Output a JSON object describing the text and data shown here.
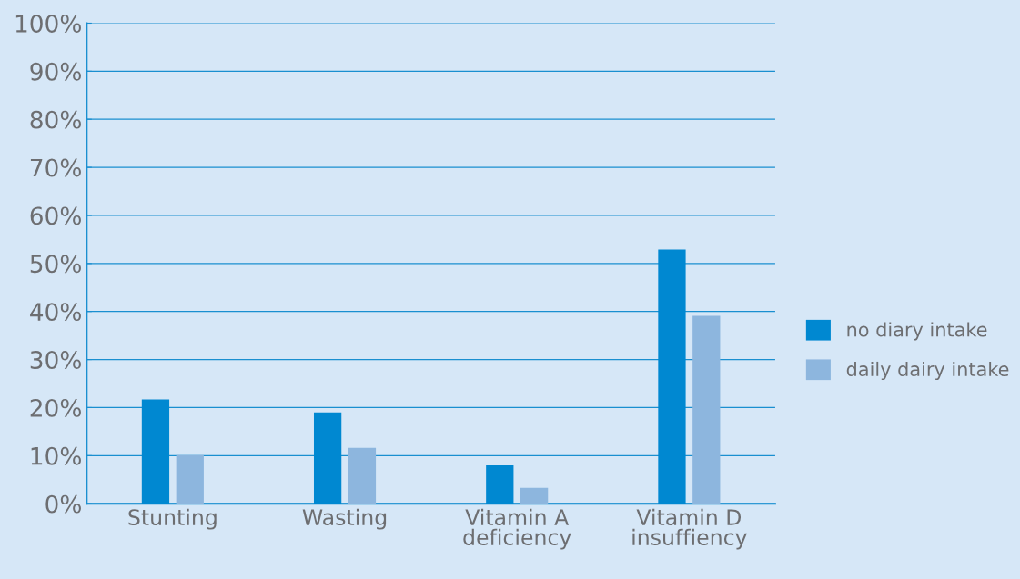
{
  "chart_data": {
    "type": "bar",
    "categories": [
      "Stunting",
      "Wasting",
      "Vitamin A\ndeficiency",
      "Vitamin D\ninsuffiency"
    ],
    "series": [
      {
        "name": "no diary intake",
        "color": "#0088d1",
        "values": [
          21.7,
          19.0,
          8.0,
          52.9
        ]
      },
      {
        "name": "daily dairy intake",
        "color": "#8db6de",
        "values": [
          10.1,
          11.6,
          3.3,
          39.1
        ]
      }
    ],
    "ylim": [
      0,
      100
    ],
    "yticks": [
      {
        "value": 0,
        "label": "0%"
      },
      {
        "value": 10,
        "label": "10%"
      },
      {
        "value": 20,
        "label": "20%"
      },
      {
        "value": 30,
        "label": "30%"
      },
      {
        "value": 40,
        "label": "40%"
      },
      {
        "value": 50,
        "label": "50%"
      },
      {
        "value": 60,
        "label": "60%"
      },
      {
        "value": 70,
        "label": "70%"
      },
      {
        "value": 80,
        "label": "80%"
      },
      {
        "value": 90,
        "label": "90%"
      },
      {
        "value": 100,
        "label": "100%"
      }
    ],
    "grid": "y",
    "legend": "right"
  }
}
